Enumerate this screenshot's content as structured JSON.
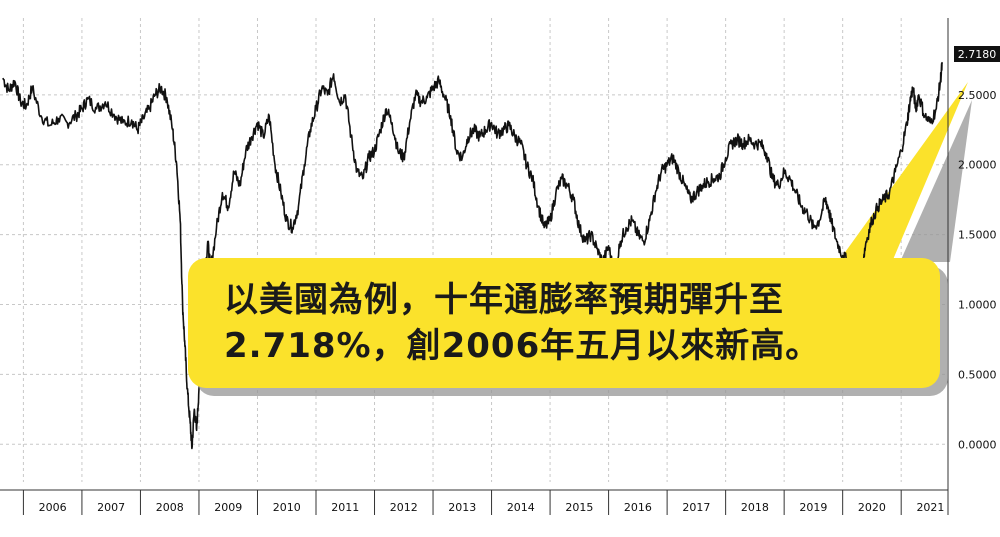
{
  "chart_data": {
    "type": "line",
    "title": "",
    "xlabel": "",
    "ylabel": "",
    "x_tick_labels": [
      "2006",
      "2007",
      "2008",
      "2009",
      "2010",
      "2011",
      "2012",
      "2013",
      "2014",
      "2015",
      "2016",
      "2017",
      "2018",
      "2019",
      "2020",
      "2021"
    ],
    "y_tick_labels": [
      "0.0000",
      "0.5000",
      "1.0000",
      "1.5000",
      "2.0000",
      "2.5000"
    ],
    "y_ticks": [
      0,
      0.5,
      1.0,
      1.5,
      2.0,
      2.5
    ],
    "ylim": [
      -0.27,
      3.05
    ],
    "xlim": [
      2005.6,
      2021.8
    ],
    "grid": true,
    "last_value_label": "2.7180",
    "series": [
      {
        "values": [
          [
            2005.65,
            2.62
          ],
          [
            2005.75,
            2.53
          ],
          [
            2005.85,
            2.6
          ],
          [
            2005.95,
            2.45
          ],
          [
            2006.05,
            2.42
          ],
          [
            2006.15,
            2.55
          ],
          [
            2006.3,
            2.35
          ],
          [
            2006.45,
            2.28
          ],
          [
            2006.6,
            2.33
          ],
          [
            2006.75,
            2.3
          ],
          [
            2006.9,
            2.35
          ],
          [
            2007.0,
            2.4
          ],
          [
            2007.1,
            2.47
          ],
          [
            2007.25,
            2.4
          ],
          [
            2007.4,
            2.45
          ],
          [
            2007.55,
            2.36
          ],
          [
            2007.7,
            2.3
          ],
          [
            2007.85,
            2.32
          ],
          [
            2007.95,
            2.25
          ],
          [
            2008.05,
            2.33
          ],
          [
            2008.15,
            2.4
          ],
          [
            2008.25,
            2.5
          ],
          [
            2008.35,
            2.55
          ],
          [
            2008.45,
            2.48
          ],
          [
            2008.55,
            2.25
          ],
          [
            2008.62,
            2.0
          ],
          [
            2008.68,
            1.6
          ],
          [
            2008.72,
            1.0
          ],
          [
            2008.76,
            0.7
          ],
          [
            2008.8,
            0.4
          ],
          [
            2008.85,
            0.15
          ],
          [
            2008.88,
            -0.03
          ],
          [
            2008.92,
            0.25
          ],
          [
            2008.96,
            0.1
          ],
          [
            2009.0,
            0.4
          ],
          [
            2009.05,
            0.9
          ],
          [
            2009.1,
            1.2
          ],
          [
            2009.15,
            1.45
          ],
          [
            2009.2,
            1.25
          ],
          [
            2009.3,
            1.55
          ],
          [
            2009.4,
            1.8
          ],
          [
            2009.5,
            1.7
          ],
          [
            2009.6,
            1.95
          ],
          [
            2009.7,
            1.85
          ],
          [
            2009.8,
            2.1
          ],
          [
            2009.9,
            2.2
          ],
          [
            2010.0,
            2.3
          ],
          [
            2010.1,
            2.2
          ],
          [
            2010.2,
            2.35
          ],
          [
            2010.3,
            2.0
          ],
          [
            2010.4,
            1.8
          ],
          [
            2010.5,
            1.6
          ],
          [
            2010.6,
            1.55
          ],
          [
            2010.7,
            1.7
          ],
          [
            2010.8,
            2.0
          ],
          [
            2010.9,
            2.25
          ],
          [
            2011.0,
            2.4
          ],
          [
            2011.1,
            2.55
          ],
          [
            2011.2,
            2.5
          ],
          [
            2011.3,
            2.65
          ],
          [
            2011.4,
            2.45
          ],
          [
            2011.5,
            2.5
          ],
          [
            2011.6,
            2.2
          ],
          [
            2011.7,
            1.95
          ],
          [
            2011.8,
            1.9
          ],
          [
            2011.9,
            2.05
          ],
          [
            2012.0,
            2.1
          ],
          [
            2012.1,
            2.25
          ],
          [
            2012.2,
            2.4
          ],
          [
            2012.3,
            2.3
          ],
          [
            2012.4,
            2.1
          ],
          [
            2012.5,
            2.05
          ],
          [
            2012.6,
            2.3
          ],
          [
            2012.7,
            2.5
          ],
          [
            2012.8,
            2.45
          ],
          [
            2012.9,
            2.48
          ],
          [
            2013.0,
            2.55
          ],
          [
            2013.1,
            2.6
          ],
          [
            2013.2,
            2.48
          ],
          [
            2013.3,
            2.35
          ],
          [
            2013.4,
            2.1
          ],
          [
            2013.5,
            2.05
          ],
          [
            2013.6,
            2.2
          ],
          [
            2013.7,
            2.25
          ],
          [
            2013.8,
            2.2
          ],
          [
            2013.9,
            2.25
          ],
          [
            2014.0,
            2.3
          ],
          [
            2014.1,
            2.22
          ],
          [
            2014.2,
            2.25
          ],
          [
            2014.3,
            2.28
          ],
          [
            2014.4,
            2.2
          ],
          [
            2014.5,
            2.15
          ],
          [
            2014.6,
            2.0
          ],
          [
            2014.7,
            1.9
          ],
          [
            2014.8,
            1.7
          ],
          [
            2014.9,
            1.55
          ],
          [
            2015.0,
            1.6
          ],
          [
            2015.1,
            1.8
          ],
          [
            2015.2,
            1.9
          ],
          [
            2015.3,
            1.85
          ],
          [
            2015.4,
            1.75
          ],
          [
            2015.5,
            1.55
          ],
          [
            2015.6,
            1.45
          ],
          [
            2015.7,
            1.5
          ],
          [
            2015.8,
            1.4
          ],
          [
            2015.9,
            1.3
          ],
          [
            2016.0,
            1.42
          ],
          [
            2016.1,
            1.2
          ],
          [
            2016.2,
            1.45
          ],
          [
            2016.3,
            1.55
          ],
          [
            2016.4,
            1.6
          ],
          [
            2016.5,
            1.5
          ],
          [
            2016.6,
            1.45
          ],
          [
            2016.7,
            1.6
          ],
          [
            2016.8,
            1.8
          ],
          [
            2016.9,
            1.95
          ],
          [
            2017.0,
            2.0
          ],
          [
            2017.1,
            2.05
          ],
          [
            2017.2,
            1.95
          ],
          [
            2017.3,
            1.85
          ],
          [
            2017.4,
            1.75
          ],
          [
            2017.5,
            1.8
          ],
          [
            2017.6,
            1.85
          ],
          [
            2017.7,
            1.88
          ],
          [
            2017.8,
            1.9
          ],
          [
            2017.9,
            1.92
          ],
          [
            2018.0,
            2.05
          ],
          [
            2018.1,
            2.15
          ],
          [
            2018.2,
            2.18
          ],
          [
            2018.3,
            2.15
          ],
          [
            2018.4,
            2.18
          ],
          [
            2018.5,
            2.15
          ],
          [
            2018.6,
            2.15
          ],
          [
            2018.7,
            2.08
          ],
          [
            2018.8,
            1.9
          ],
          [
            2018.9,
            1.85
          ],
          [
            2019.0,
            1.95
          ],
          [
            2019.1,
            1.9
          ],
          [
            2019.2,
            1.8
          ],
          [
            2019.3,
            1.7
          ],
          [
            2019.4,
            1.65
          ],
          [
            2019.5,
            1.55
          ],
          [
            2019.6,
            1.6
          ],
          [
            2019.7,
            1.75
          ],
          [
            2019.75,
            1.7
          ],
          [
            2019.8,
            1.6
          ],
          [
            2019.9,
            1.45
          ],
          [
            2020.0,
            1.35
          ],
          [
            2020.1,
            1.3
          ],
          [
            2020.2,
            1.25
          ],
          [
            2020.28,
            1.15
          ],
          [
            2020.34,
            1.3
          ],
          [
            2020.4,
            1.45
          ],
          [
            2020.5,
            1.6
          ],
          [
            2020.6,
            1.7
          ],
          [
            2020.7,
            1.75
          ],
          [
            2020.8,
            1.8
          ],
          [
            2020.9,
            1.95
          ],
          [
            2021.0,
            2.1
          ],
          [
            2021.1,
            2.3
          ],
          [
            2021.15,
            2.45
          ],
          [
            2021.2,
            2.55
          ],
          [
            2021.25,
            2.4
          ],
          [
            2021.3,
            2.5
          ],
          [
            2021.4,
            2.35
          ],
          [
            2021.5,
            2.3
          ],
          [
            2021.6,
            2.4
          ],
          [
            2021.67,
            2.6
          ],
          [
            2021.7,
            2.718
          ]
        ]
      }
    ]
  },
  "callout": {
    "line1": "以美國為例，十年通膨率預期彈升至",
    "line2": "2.718%，創2006年五月以來新高。"
  },
  "colors": {
    "line": "#111111",
    "grid": "#c8c8c8",
    "callout_fill": "#fbe22b",
    "label_bg": "#111111"
  }
}
